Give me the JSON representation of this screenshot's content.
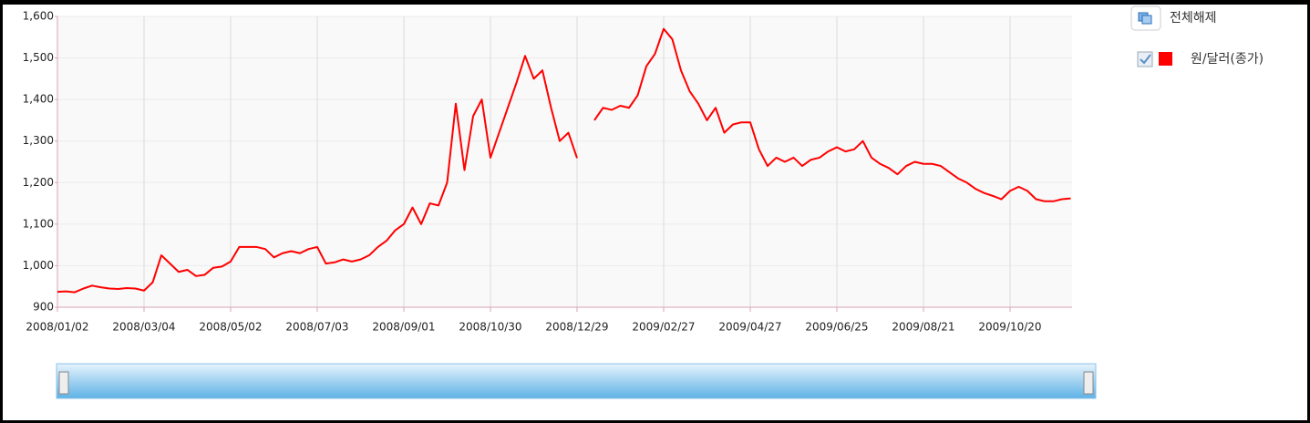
{
  "controls": {
    "clear_all": "전체해제"
  },
  "chart_data": {
    "type": "line",
    "categories": [
      "2008/01/02",
      null,
      null,
      null,
      null,
      null,
      null,
      null,
      null,
      null,
      "2008/03/04",
      null,
      null,
      null,
      null,
      null,
      null,
      null,
      null,
      null,
      "2008/05/02",
      null,
      null,
      null,
      null,
      null,
      null,
      null,
      null,
      null,
      "2008/07/03",
      null,
      null,
      null,
      null,
      null,
      null,
      null,
      null,
      null,
      "2008/09/01",
      null,
      null,
      null,
      null,
      null,
      null,
      null,
      null,
      null,
      "2008/10/30",
      null,
      null,
      null,
      null,
      null,
      null,
      null,
      null,
      null,
      "2008/12/29",
      null,
      null,
      null,
      null,
      null,
      null,
      null,
      null,
      null,
      "2009/02/27",
      null,
      null,
      null,
      null,
      null,
      null,
      null,
      null,
      null,
      "2009/04/27",
      null,
      null,
      null,
      null,
      null,
      null,
      null,
      null,
      null,
      "2009/06/25",
      null,
      null,
      null,
      null,
      null,
      null,
      null,
      null,
      null,
      "2009/08/21",
      null,
      null,
      null,
      null,
      null,
      null,
      null,
      null,
      null,
      "2009/10/20",
      null,
      null,
      null,
      null,
      null,
      null,
      null
    ],
    "series": [
      {
        "name": "원/달러(종가)",
        "color": "#ff0000",
        "values": [
          937,
          938,
          936,
          945,
          952,
          948,
          945,
          944,
          946,
          945,
          940,
          960,
          1025,
          1005,
          985,
          990,
          975,
          978,
          995,
          998,
          1010,
          1045,
          1045,
          1045,
          1040,
          1020,
          1030,
          1035,
          1030,
          1040,
          1045,
          1005,
          1008,
          1015,
          1010,
          1015,
          1025,
          1045,
          1060,
          1085,
          1100,
          1140,
          1100,
          1150,
          1145,
          1200,
          1390,
          1230,
          1360,
          1400,
          1260,
          1320,
          1380,
          1440,
          1505,
          1450,
          1470,
          1380,
          1300,
          1320,
          1259,
          null,
          1350,
          1380,
          1375,
          1385,
          1380,
          1410,
          1480,
          1510,
          1570,
          1545,
          1470,
          1420,
          1390,
          1350,
          1380,
          1320,
          1340,
          1345,
          1345,
          1280,
          1240,
          1260,
          1250,
          1260,
          1240,
          1255,
          1260,
          1275,
          1285,
          1275,
          1280,
          1300,
          1260,
          1245,
          1235,
          1220,
          1240,
          1250,
          1245,
          1245,
          1240,
          1225,
          1210,
          1200,
          1185,
          1175,
          1168,
          1160,
          1180,
          1190,
          1180,
          1160,
          1155,
          1155,
          1160,
          1162
        ]
      }
    ],
    "ylim": [
      900,
      1600
    ],
    "yticks": [
      900,
      {
        "value": 1000,
        "label": "1,000"
      },
      {
        "value": 1100,
        "label": "1,100"
      },
      {
        "value": 1200,
        "label": "1,200"
      },
      {
        "value": 1300,
        "label": "1,300"
      },
      {
        "value": 1400,
        "label": "1,400"
      },
      {
        "value": 1500,
        "label": "1,500"
      },
      {
        "value": 1600,
        "label": "1,600"
      }
    ],
    "grid": true
  }
}
